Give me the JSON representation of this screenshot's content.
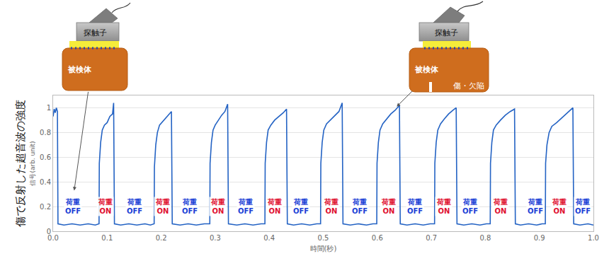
{
  "chart_data": {
    "type": "line",
    "title": "傷で反射した超音波の強度",
    "x_label": "時間(秒)",
    "y_label": "信号(arb. unit)",
    "xlim": [
      0,
      1
    ],
    "xticks": [
      {
        "value": 0,
        "label": "0.0"
      },
      0.1,
      0.2,
      0.3,
      0.4,
      0.5,
      0.6,
      0.7,
      0.8,
      0.9,
      {
        "value": 1,
        "label": "1.0"
      }
    ],
    "ylim": [
      0,
      1.1
    ],
    "yticks": [
      0,
      0.2,
      0.4,
      0.6,
      0.8,
      1
    ],
    "grid": true,
    "series": [
      {
        "color": "#2463c4",
        "x": [
          0,
          0.002,
          0.004,
          0.006,
          0.008,
          0.009,
          0.02,
          0.035,
          0.05,
          0.065,
          0.078,
          0.085,
          0.0855,
          0.088,
          0.091,
          0.095,
          0.1,
          0.105,
          0.11,
          0.112,
          0.1135,
          0.125,
          0.14,
          0.155,
          0.17,
          0.18,
          0.187,
          0.1875,
          0.19,
          0.193,
          0.197,
          0.203,
          0.209,
          0.215,
          0.219,
          0.2205,
          0.235,
          0.25,
          0.265,
          0.28,
          0.29,
          0.2905,
          0.293,
          0.296,
          0.3,
          0.306,
          0.312,
          0.318,
          0.323,
          0.3245,
          0.34,
          0.355,
          0.37,
          0.385,
          0.392,
          0.3925,
          0.395,
          0.398,
          0.403,
          0.41,
          0.418,
          0.426,
          0.432,
          0.4335,
          0.445,
          0.46,
          0.475,
          0.488,
          0.495,
          0.4955,
          0.498,
          0.501,
          0.506,
          0.513,
          0.521,
          0.529,
          0.535,
          0.5365,
          0.55,
          0.565,
          0.58,
          0.592,
          0.599,
          0.5995,
          0.602,
          0.605,
          0.61,
          0.617,
          0.625,
          0.633,
          0.641,
          0.6425,
          0.655,
          0.67,
          0.685,
          0.698,
          0.706,
          0.7065,
          0.709,
          0.712,
          0.717,
          0.724,
          0.732,
          0.74,
          0.746,
          0.7475,
          0.76,
          0.775,
          0.79,
          0.802,
          0.809,
          0.8095,
          0.812,
          0.815,
          0.82,
          0.828,
          0.837,
          0.846,
          0.854,
          0.8555,
          0.865,
          0.88,
          0.895,
          0.905,
          0.911,
          0.9115,
          0.914,
          0.918,
          0.923,
          0.932,
          0.942,
          0.952,
          0.962,
          0.9635,
          0.975,
          0.99,
          1.0
        ],
        "values": [
          0.93,
          0.99,
          0.96,
          1.0,
          0.97,
          0.06,
          0.05,
          0.06,
          0.05,
          0.06,
          0.05,
          0.06,
          0.55,
          0.72,
          0.82,
          0.86,
          0.88,
          0.93,
          0.95,
          1.04,
          0.06,
          0.05,
          0.06,
          0.05,
          0.06,
          0.05,
          0.06,
          0.52,
          0.7,
          0.8,
          0.86,
          0.89,
          0.92,
          0.95,
          0.97,
          0.06,
          0.05,
          0.06,
          0.05,
          0.06,
          0.06,
          0.55,
          0.72,
          0.82,
          0.86,
          0.9,
          0.94,
          0.97,
          1.03,
          0.06,
          0.05,
          0.06,
          0.05,
          0.06,
          0.06,
          0.55,
          0.72,
          0.82,
          0.86,
          0.9,
          0.93,
          0.96,
          0.99,
          0.06,
          0.05,
          0.06,
          0.05,
          0.06,
          0.06,
          0.55,
          0.72,
          0.82,
          0.87,
          0.9,
          0.94,
          0.97,
          1.04,
          0.06,
          0.05,
          0.06,
          0.05,
          0.06,
          0.06,
          0.55,
          0.72,
          0.82,
          0.87,
          0.91,
          0.95,
          0.98,
          1.02,
          0.06,
          0.05,
          0.06,
          0.05,
          0.06,
          0.06,
          0.55,
          0.72,
          0.82,
          0.87,
          0.91,
          0.95,
          0.98,
          1.0,
          0.06,
          0.05,
          0.06,
          0.05,
          0.06,
          0.06,
          0.55,
          0.72,
          0.82,
          0.86,
          0.9,
          0.94,
          0.97,
          0.99,
          0.06,
          0.05,
          0.06,
          0.05,
          0.06,
          0.06,
          0.55,
          0.7,
          0.8,
          0.85,
          0.88,
          0.92,
          0.96,
          1.0,
          0.06,
          0.05,
          0.06,
          0.05
        ]
      }
    ],
    "annotations": [
      {
        "x": 0.037,
        "y": 0.2,
        "text": "荷重\nOFF",
        "color": "#1a3fd6"
      },
      {
        "x": 0.096,
        "y": 0.2,
        "text": "荷重\nON",
        "color": "#e01030"
      },
      {
        "x": 0.151,
        "y": 0.2,
        "text": "荷重\nOFF",
        "color": "#1a3fd6"
      },
      {
        "x": 0.203,
        "y": 0.2,
        "text": "荷重\nON",
        "color": "#e01030"
      },
      {
        "x": 0.253,
        "y": 0.2,
        "text": "荷重\nOFF",
        "color": "#1a3fd6"
      },
      {
        "x": 0.305,
        "y": 0.2,
        "text": "荷重\nON",
        "color": "#e01030"
      },
      {
        "x": 0.356,
        "y": 0.2,
        "text": "荷重\nOFF",
        "color": "#1a3fd6"
      },
      {
        "x": 0.41,
        "y": 0.2,
        "text": "荷重\nON",
        "color": "#e01030"
      },
      {
        "x": 0.459,
        "y": 0.2,
        "text": "荷重\nOFF",
        "color": "#1a3fd6"
      },
      {
        "x": 0.514,
        "y": 0.2,
        "text": "荷重\nON",
        "color": "#e01030"
      },
      {
        "x": 0.567,
        "y": 0.2,
        "text": "荷重\nOFF",
        "color": "#1a3fd6"
      },
      {
        "x": 0.62,
        "y": 0.2,
        "text": "荷重\nON",
        "color": "#e01030"
      },
      {
        "x": 0.67,
        "y": 0.2,
        "text": "荷重\nOFF",
        "color": "#1a3fd6"
      },
      {
        "x": 0.723,
        "y": 0.2,
        "text": "荷重\nON",
        "color": "#e01030"
      },
      {
        "x": 0.772,
        "y": 0.2,
        "text": "荷重\nOFF",
        "color": "#1a3fd6"
      },
      {
        "x": 0.827,
        "y": 0.2,
        "text": "荷重\nON",
        "color": "#e01030"
      },
      {
        "x": 0.893,
        "y": 0.2,
        "text": "荷重\nOFF",
        "color": "#1a3fd6"
      },
      {
        "x": 0.937,
        "y": 0.2,
        "text": "荷重\nON",
        "color": "#e01030"
      },
      {
        "x": 0.98,
        "y": 0.2,
        "text": "荷重\nOFF",
        "color": "#1a3fd6"
      }
    ]
  },
  "diagrams": [
    {
      "probe": "探触子",
      "specimen": "被検体",
      "arrow_to": {
        "x": 0.039,
        "y": 0.33
      }
    },
    {
      "probe": "探触子",
      "specimen": "被検体",
      "defect": "傷・欠陥",
      "arrow_to": {
        "x": 0.636,
        "y": 1.01
      }
    }
  ]
}
